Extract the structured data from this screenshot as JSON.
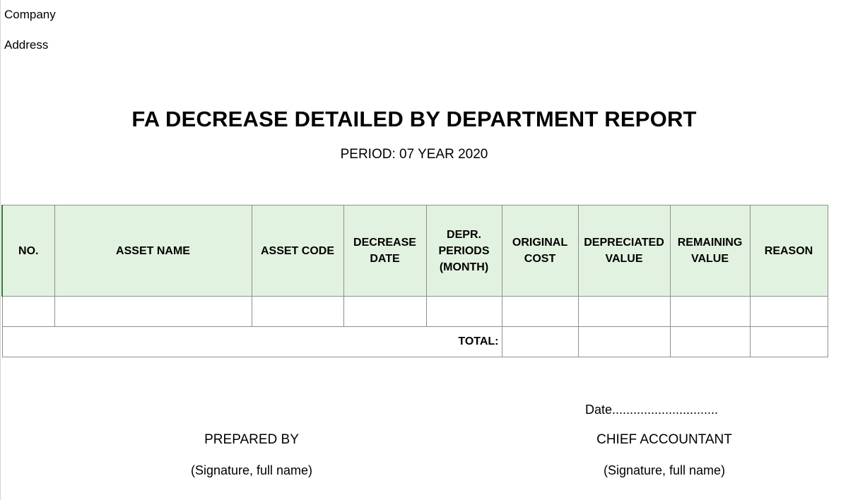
{
  "header": {
    "company": "Company",
    "address": "Address"
  },
  "report": {
    "title": "FA DECREASE DETAILED BY DEPARTMENT REPORT",
    "period": "PERIOD: 07 YEAR 2020"
  },
  "table": {
    "columns": [
      "NO.",
      "ASSET NAME",
      "ASSET CODE",
      "DECREASE DATE",
      "DEPR. PERIODS (MONTH)",
      "ORIGINAL COST",
      "DEPRECIATED VALUE",
      "REMAINING VALUE",
      "REASON"
    ],
    "rows": [
      [
        "",
        "",
        "",
        "",
        "",
        "",
        "",
        "",
        ""
      ]
    ],
    "total_label": "TOTAL:",
    "total_values": [
      "",
      "",
      "",
      ""
    ]
  },
  "footer": {
    "date_line": "Date..............................",
    "prepared_by": "PREPARED BY",
    "prepared_signature": "(Signature, full name)",
    "chief_accountant": "CHIEF ACCOUNTANT",
    "chief_signature": "(Signature, full name)"
  }
}
